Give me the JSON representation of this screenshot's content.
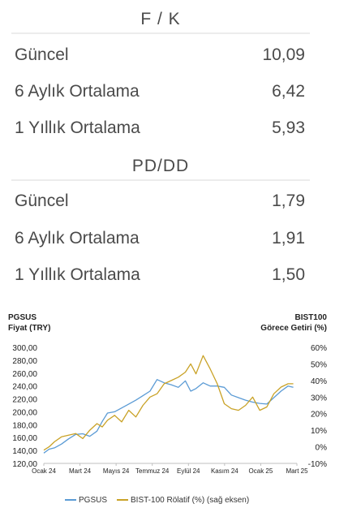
{
  "fk": {
    "title": "F / K",
    "rows": [
      {
        "label": "Güncel",
        "value": "10,09"
      },
      {
        "label": "6 Aylık Ortalama",
        "value": "6,42"
      },
      {
        "label": "1 Yıllık Ortalama",
        "value": "5,93"
      }
    ]
  },
  "pddd": {
    "title": "PD/DD",
    "rows": [
      {
        "label": "Güncel",
        "value": "1,79"
      },
      {
        "label": "6 Aylık Ortalama",
        "value": "1,91"
      },
      {
        "label": "1 Yıllık Ortalama",
        "value": "1,50"
      }
    ]
  },
  "chart_data": {
    "type": "line",
    "left_axis_title_1": "PGSUS",
    "left_axis_title_2": "Fiyat (TRY)",
    "right_axis_title_1": "BIST100",
    "right_axis_title_2": "Görece Getiri (%)",
    "ylim_left": [
      120,
      300
    ],
    "ylim_right": [
      -10,
      60
    ],
    "yticks_left": [
      "300,00",
      "280,00",
      "260,00",
      "240,00",
      "220,00",
      "200,00",
      "180,00",
      "160,00",
      "140,00",
      "120,00"
    ],
    "yticks_right": [
      "60%",
      "50%",
      "40%",
      "30%",
      "20%",
      "10%",
      "0%",
      "-10%"
    ],
    "xticks": [
      "Ocak 24",
      "Mart 24",
      "Mayıs 24",
      "Temmuz 24",
      "Eylül 24",
      "Kasım 24",
      "Ocak 25",
      "Mart 25"
    ],
    "x_range_months": [
      0,
      14.3
    ],
    "series": [
      {
        "name": "PGSUS",
        "axis": "left",
        "color": "#5b9bd5",
        "x": [
          0,
          0.3,
          0.6,
          1,
          1.4,
          1.8,
          2.2,
          2.6,
          3,
          3.3,
          3.6,
          4,
          4.4,
          4.8,
          5.2,
          5.6,
          6,
          6.4,
          6.8,
          7.2,
          7.6,
          8,
          8.3,
          8.6,
          9,
          9.4,
          9.8,
          10.2,
          10.6,
          11,
          11.4,
          11.8,
          12.2,
          12.6,
          13,
          13.4,
          13.8,
          14.1
        ],
        "values": [
          136,
          142,
          144,
          150,
          158,
          165,
          166,
          162,
          170,
          185,
          198,
          200,
          206,
          212,
          218,
          225,
          232,
          250,
          245,
          242,
          238,
          248,
          232,
          236,
          245,
          240,
          240,
          238,
          226,
          222,
          218,
          215,
          213,
          212,
          222,
          232,
          240,
          238
        ]
      },
      {
        "name": "BIST-100 Rölatif (%) (sağ eksen)",
        "axis": "right",
        "color": "#c9a227",
        "x": [
          0,
          0.3,
          0.6,
          1,
          1.4,
          1.8,
          2.2,
          2.6,
          3,
          3.3,
          3.6,
          4,
          4.4,
          4.8,
          5.2,
          5.6,
          6,
          6.4,
          6.8,
          7.2,
          7.6,
          8,
          8.3,
          8.6,
          9,
          9.4,
          9.8,
          10.2,
          10.6,
          11,
          11.4,
          11.8,
          12.2,
          12.6,
          13,
          13.4,
          13.8,
          14.1
        ],
        "values": [
          -2,
          0,
          3,
          6,
          7,
          8,
          5,
          10,
          14,
          12,
          16,
          19,
          15,
          22,
          18,
          25,
          30,
          32,
          38,
          40,
          42,
          45,
          50,
          44,
          55,
          47,
          38,
          26,
          23,
          22,
          25,
          30,
          22,
          24,
          32,
          36,
          38,
          38
        ]
      }
    ],
    "legend": [
      "PGSUS",
      "BIST-100 Rölatif (%) (sağ eksen)"
    ],
    "legend_position": "bottom"
  }
}
